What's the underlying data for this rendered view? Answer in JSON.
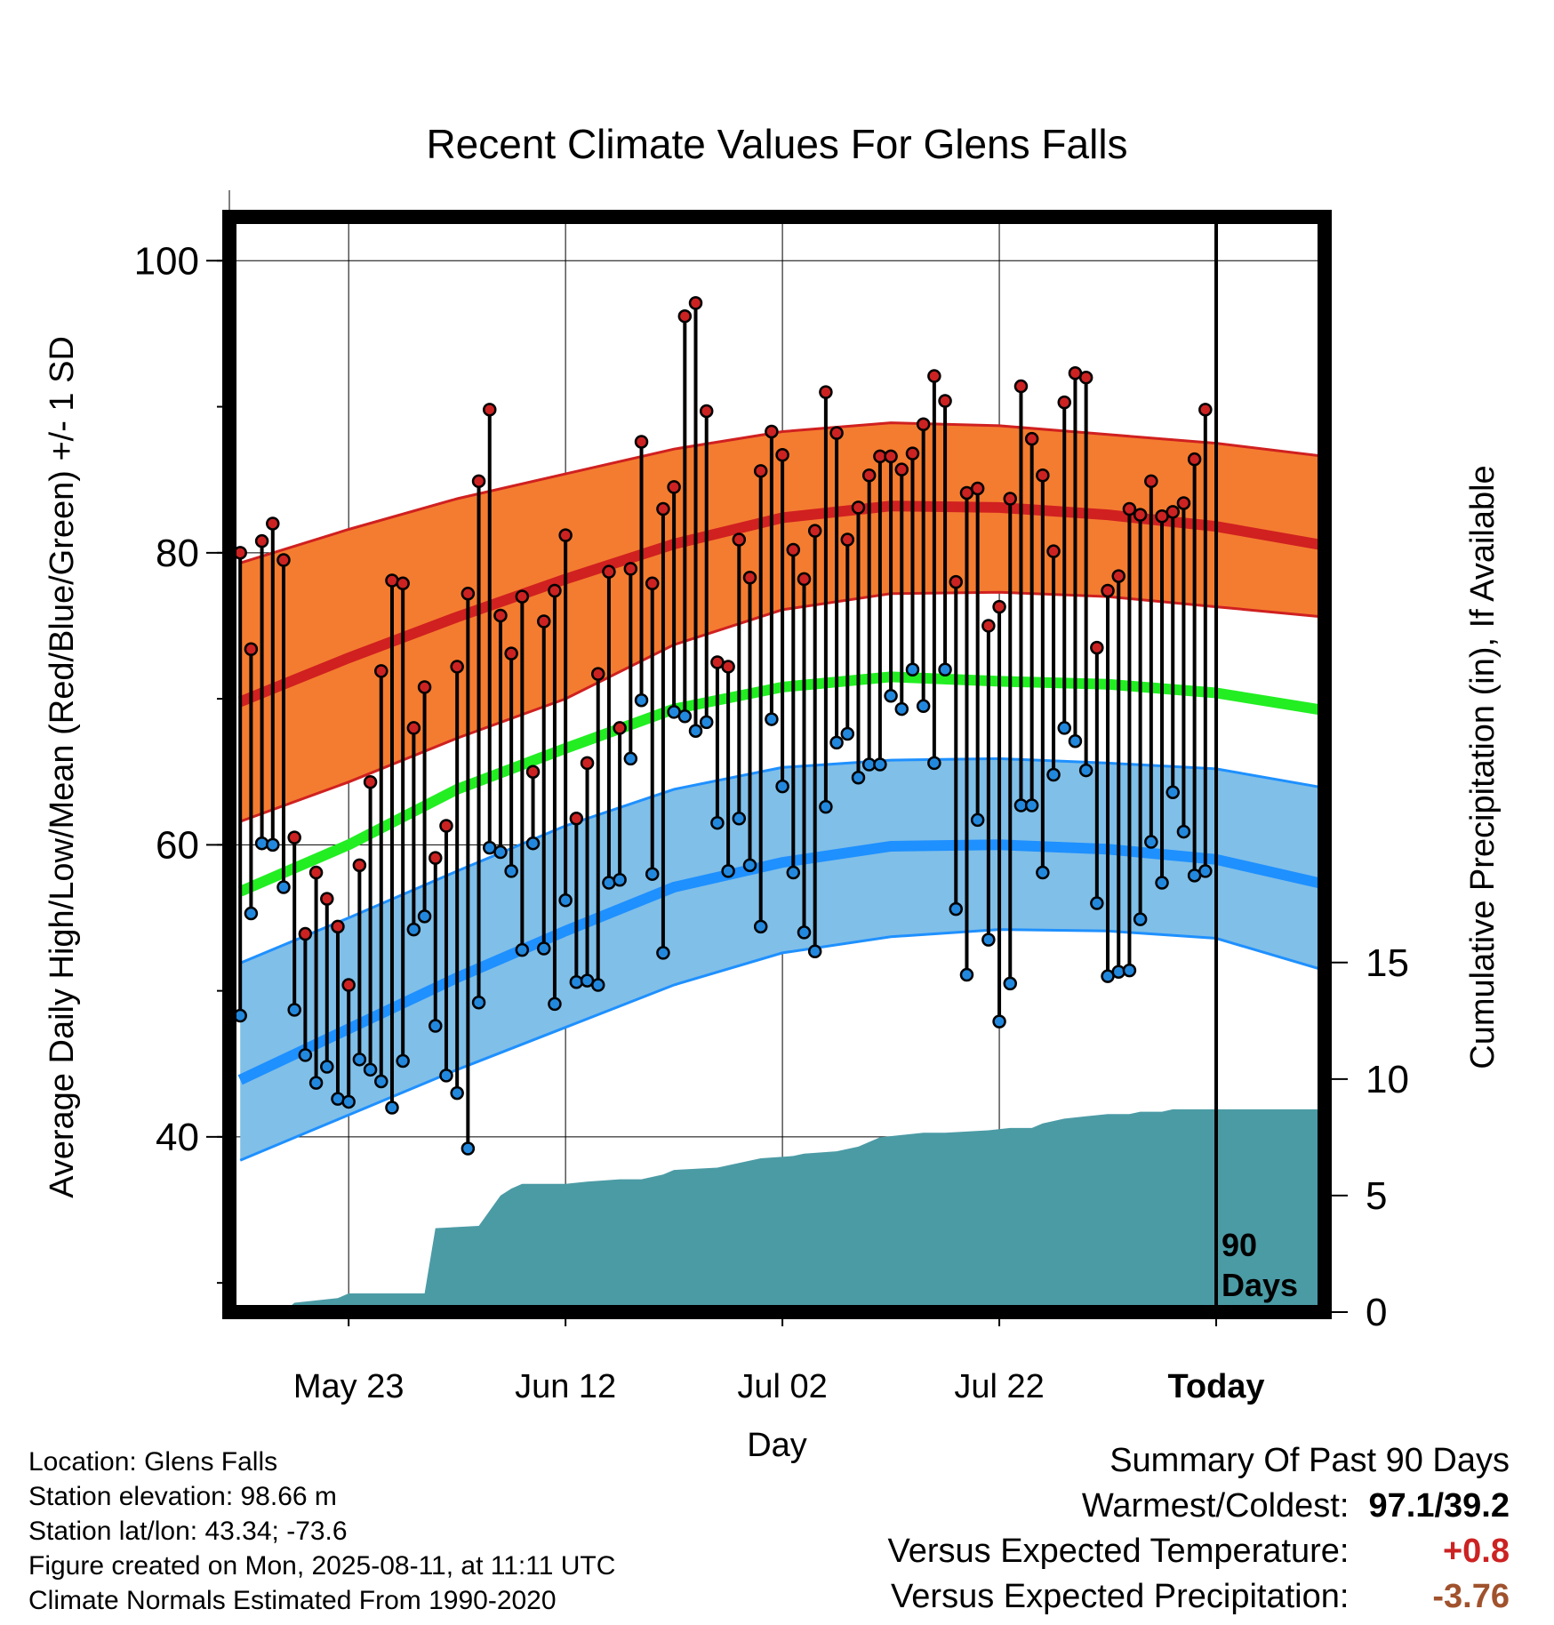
{
  "chart_data": {
    "type": "line",
    "title": "Recent Climate Values For Glens Falls",
    "xlabel": "Day",
    "ylabel": "Average Daily High/Low/Mean (Red/Blue/Green) +/- 1 SD",
    "y2label": "Cumulative Precipitation (in), If Available",
    "ylim": [
      28,
      103
    ],
    "y2lim": [
      0,
      47
    ],
    "y_ticks": [
      "40",
      "60",
      "80",
      "100"
    ],
    "y2_ticks": [
      "0",
      "5",
      "10",
      "15"
    ],
    "x_tick_labels": [
      "May 23",
      "Jun 12",
      "Jul 02",
      "Jul 22",
      "Today"
    ],
    "x_tick_days": [
      11,
      31,
      51,
      71,
      91
    ],
    "xlim": [
      0,
      101
    ],
    "grid": true,
    "marker_label": "90 Days",
    "normals": {
      "days": [
        1,
        11,
        21,
        31,
        41,
        51,
        61,
        71,
        81,
        91,
        101
      ],
      "high_mean": [
        69.8,
        72.8,
        75.6,
        78.2,
        80.6,
        82.4,
        83.2,
        83.1,
        82.6,
        81.8,
        80.5
      ],
      "high_upper": [
        79.3,
        81.6,
        83.7,
        85.4,
        87.1,
        88.3,
        88.9,
        88.7,
        88.1,
        87.5,
        86.6
      ],
      "high_lower": [
        61.6,
        64.3,
        67.3,
        70.0,
        73.7,
        76.1,
        77.2,
        77.3,
        77.0,
        76.3,
        75.6
      ],
      "avg_mean": [
        56.8,
        60.0,
        63.8,
        66.6,
        69.3,
        70.8,
        71.5,
        71.2,
        71.0,
        70.4,
        69.2
      ],
      "low_mean": [
        43.9,
        47.4,
        50.9,
        54.1,
        57.1,
        58.8,
        59.9,
        60.0,
        59.7,
        59.0,
        57.3
      ],
      "low_upper": [
        51.9,
        55.0,
        58.2,
        61.3,
        63.8,
        65.3,
        65.8,
        65.9,
        65.6,
        65.2,
        63.9
      ],
      "low_lower": [
        38.4,
        41.5,
        44.6,
        47.5,
        50.4,
        52.6,
        53.7,
        54.2,
        54.1,
        53.6,
        51.4
      ]
    },
    "series": [
      {
        "name": "High",
        "color": "#cc2222",
        "values": [
          80.0,
          73.4,
          80.8,
          82.0,
          79.5,
          60.5,
          53.9,
          58.1,
          56.3,
          54.4,
          50.4,
          58.6,
          64.3,
          71.9,
          78.1,
          77.9,
          68.0,
          70.8,
          59.1,
          61.3,
          72.2,
          77.2,
          84.9,
          89.8,
          75.7,
          73.1,
          77.0,
          65.0,
          75.3,
          77.4,
          81.2,
          61.8,
          65.6,
          71.7,
          78.7,
          68.0,
          78.9,
          87.6,
          77.9,
          83.0,
          84.5,
          96.2,
          97.1,
          89.7,
          72.5,
          72.2,
          80.9,
          78.3,
          85.6,
          88.3,
          86.7,
          80.2,
          78.2,
          81.5,
          91.0,
          88.2,
          80.9,
          83.1,
          85.3,
          86.6,
          86.6,
          85.7,
          86.8,
          88.8,
          92.1,
          90.4,
          78.0,
          84.1,
          84.4,
          75.0,
          76.3,
          83.7,
          91.4,
          87.8,
          85.3,
          80.1,
          90.3,
          92.3,
          92.0,
          73.5,
          77.4,
          78.4,
          83.0,
          82.6,
          84.9,
          82.5,
          82.8,
          83.4,
          86.4,
          89.8
        ]
      },
      {
        "name": "Low",
        "color": "#2288dd",
        "values": [
          48.3,
          55.3,
          60.1,
          60.0,
          57.1,
          48.7,
          45.6,
          43.7,
          44.8,
          42.6,
          42.4,
          45.3,
          44.6,
          43.8,
          42.0,
          45.2,
          54.2,
          55.1,
          47.6,
          44.2,
          43.0,
          39.2,
          49.2,
          59.8,
          59.5,
          58.2,
          52.8,
          60.1,
          52.9,
          49.1,
          56.2,
          50.6,
          50.7,
          50.4,
          57.4,
          57.6,
          65.9,
          69.9,
          58.0,
          52.6,
          69.1,
          68.8,
          67.8,
          68.4,
          61.5,
          58.2,
          61.8,
          58.6,
          54.4,
          68.6,
          64.0,
          58.1,
          54.0,
          52.7,
          62.6,
          67.0,
          67.6,
          64.6,
          65.5,
          65.5,
          70.2,
          69.3,
          72.0,
          69.5,
          65.6,
          72.0,
          55.6,
          51.1,
          61.7,
          53.5,
          47.9,
          50.5,
          62.7,
          62.7,
          58.1,
          64.8,
          68.0,
          67.1,
          65.1,
          56.0,
          51.0,
          51.3,
          51.4,
          54.9,
          60.2,
          57.4,
          63.6,
          60.9,
          57.9,
          58.2
        ]
      }
    ],
    "precip": {
      "days": [
        5,
        6,
        10,
        11,
        18,
        19,
        23,
        25,
        26,
        27,
        28,
        31,
        33,
        36,
        38,
        40,
        41,
        45,
        46,
        49,
        52,
        53,
        56,
        57,
        58,
        60,
        64,
        66,
        70,
        72,
        74,
        75,
        77,
        79,
        81,
        83,
        84,
        86,
        87,
        91
      ],
      "values": [
        0.0,
        0.4,
        0.6,
        0.8,
        0.8,
        3.6,
        3.7,
        5.0,
        5.3,
        5.5,
        5.5,
        5.5,
        5.6,
        5.7,
        5.7,
        5.9,
        6.1,
        6.2,
        6.3,
        6.6,
        6.7,
        6.8,
        6.9,
        7.0,
        7.1,
        7.5,
        7.7,
        7.7,
        7.8,
        7.9,
        7.9,
        8.1,
        8.3,
        8.4,
        8.5,
        8.5,
        8.6,
        8.6,
        8.7,
        8.7
      ]
    }
  },
  "location_info": [
    "Location: Glens Falls",
    "Station elevation: 98.66 m",
    "Station lat/lon: 43.34; -73.6",
    "Figure created on Mon, 2025-08-11, at 11:11 UTC",
    "Climate Normals Estimated From 1990-2020"
  ],
  "summary": {
    "title": "Summary Of Past 90 Days",
    "warmest_coldest_label": "Warmest/Coldest:",
    "warmest_coldest_value": "97.1/39.2",
    "temp_label": "Versus Expected Temperature:",
    "temp_value": "+0.8",
    "precip_label": "Versus Expected Precipitation:",
    "precip_value": "-3.76"
  },
  "colors": {
    "high_band": "#f47c30",
    "high_line": "#d02020",
    "avg_line": "#22ee22",
    "low_band": "#80bfe8",
    "low_line": "#1e90ff",
    "precip_fill": "#4b9ba5",
    "high_point": "#cc2222",
    "low_point": "#2288dd"
  }
}
